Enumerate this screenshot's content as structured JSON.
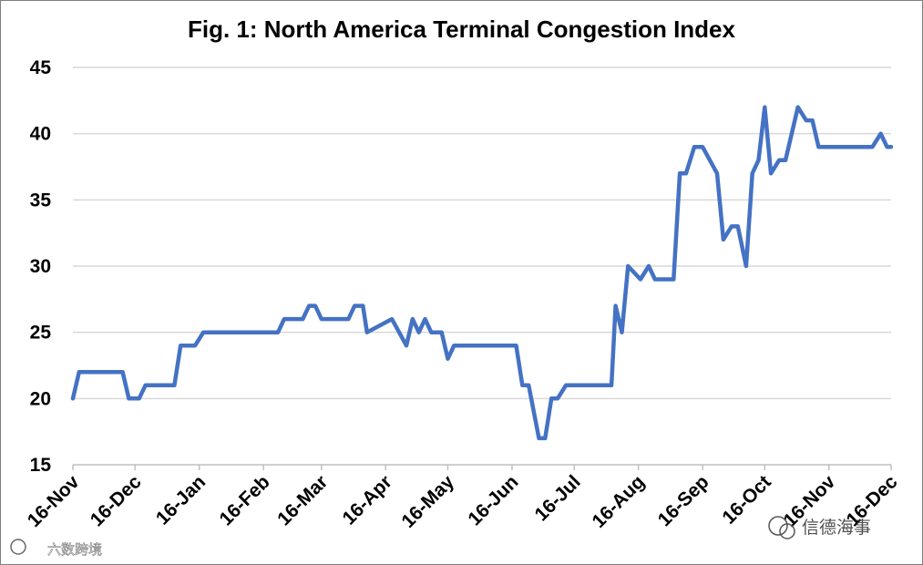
{
  "chart_data": {
    "type": "line",
    "title": "Fig. 1: North America Terminal Congestion Index",
    "xlabel": "",
    "ylabel": "",
    "ylim": [
      15,
      45
    ],
    "yticks": [
      "15",
      "20",
      "25",
      "30",
      "35",
      "40",
      "45"
    ],
    "xlim": [
      "2021-11-16",
      "2022-12-16"
    ],
    "x_tick_labels": [
      "16-Nov",
      "16-Dec",
      "16-Jan",
      "16-Feb",
      "16-Mar",
      "16-Apr",
      "16-May",
      "16-Jun",
      "16-Jul",
      "16-Aug",
      "16-Sep",
      "16-Oct",
      "16-Nov",
      "16-Dec"
    ],
    "grid": "horizontal",
    "legend": "none",
    "color": "#4472C4",
    "series": [
      {
        "x": [
          "2021-11-16",
          "2021-11-19",
          "2021-11-21",
          "2021-12-10",
          "2021-12-13",
          "2021-12-18",
          "2021-12-21",
          "2022-01-04",
          "2022-01-07",
          "2022-01-11",
          "2022-01-14",
          "2022-01-18",
          "2022-02-23",
          "2022-02-26",
          "2022-03-07",
          "2022-03-10",
          "2022-03-13",
          "2022-03-16",
          "2022-03-29",
          "2022-04-01",
          "2022-04-05",
          "2022-04-07",
          "2022-04-19",
          "2022-04-26",
          "2022-04-29",
          "2022-05-02",
          "2022-05-05",
          "2022-05-08",
          "2022-05-13",
          "2022-05-16",
          "2022-05-19",
          "2022-06-18",
          "2022-06-21",
          "2022-06-24",
          "2022-06-29",
          "2022-07-02",
          "2022-07-05",
          "2022-07-08",
          "2022-07-12",
          "2022-07-15",
          "2022-08-03",
          "2022-08-05",
          "2022-08-08",
          "2022-08-11",
          "2022-08-17",
          "2022-08-21",
          "2022-08-24",
          "2022-09-02",
          "2022-09-05",
          "2022-09-08",
          "2022-09-12",
          "2022-09-16",
          "2022-09-23",
          "2022-09-26",
          "2022-09-30",
          "2022-10-03",
          "2022-10-07",
          "2022-10-10",
          "2022-10-13",
          "2022-10-16",
          "2022-10-19",
          "2022-10-23",
          "2022-10-26",
          "2022-10-29",
          "2022-11-01",
          "2022-11-05",
          "2022-11-08",
          "2022-11-11",
          "2022-11-14",
          "2022-11-19",
          "2022-12-07",
          "2022-12-11",
          "2022-12-14",
          "2022-12-16"
        ],
        "y": [
          20,
          22,
          22,
          22,
          20,
          20,
          21,
          21,
          24,
          24,
          24,
          25,
          25,
          26,
          26,
          27,
          27,
          26,
          26,
          27,
          27,
          25,
          26,
          24,
          26,
          25,
          26,
          25,
          25,
          23,
          24,
          24,
          21,
          21,
          17,
          17,
          20,
          20,
          21,
          21,
          21,
          27,
          25,
          30,
          29,
          30,
          29,
          29,
          37,
          37,
          39,
          39,
          37,
          32,
          33,
          33,
          30,
          37,
          38,
          42,
          37,
          38,
          38,
          40,
          42,
          41,
          41,
          39,
          39,
          39,
          39,
          40,
          39,
          39
        ]
      }
    ]
  },
  "watermark": {
    "left_text": "六数跨境",
    "right_text": "信德海事"
  }
}
